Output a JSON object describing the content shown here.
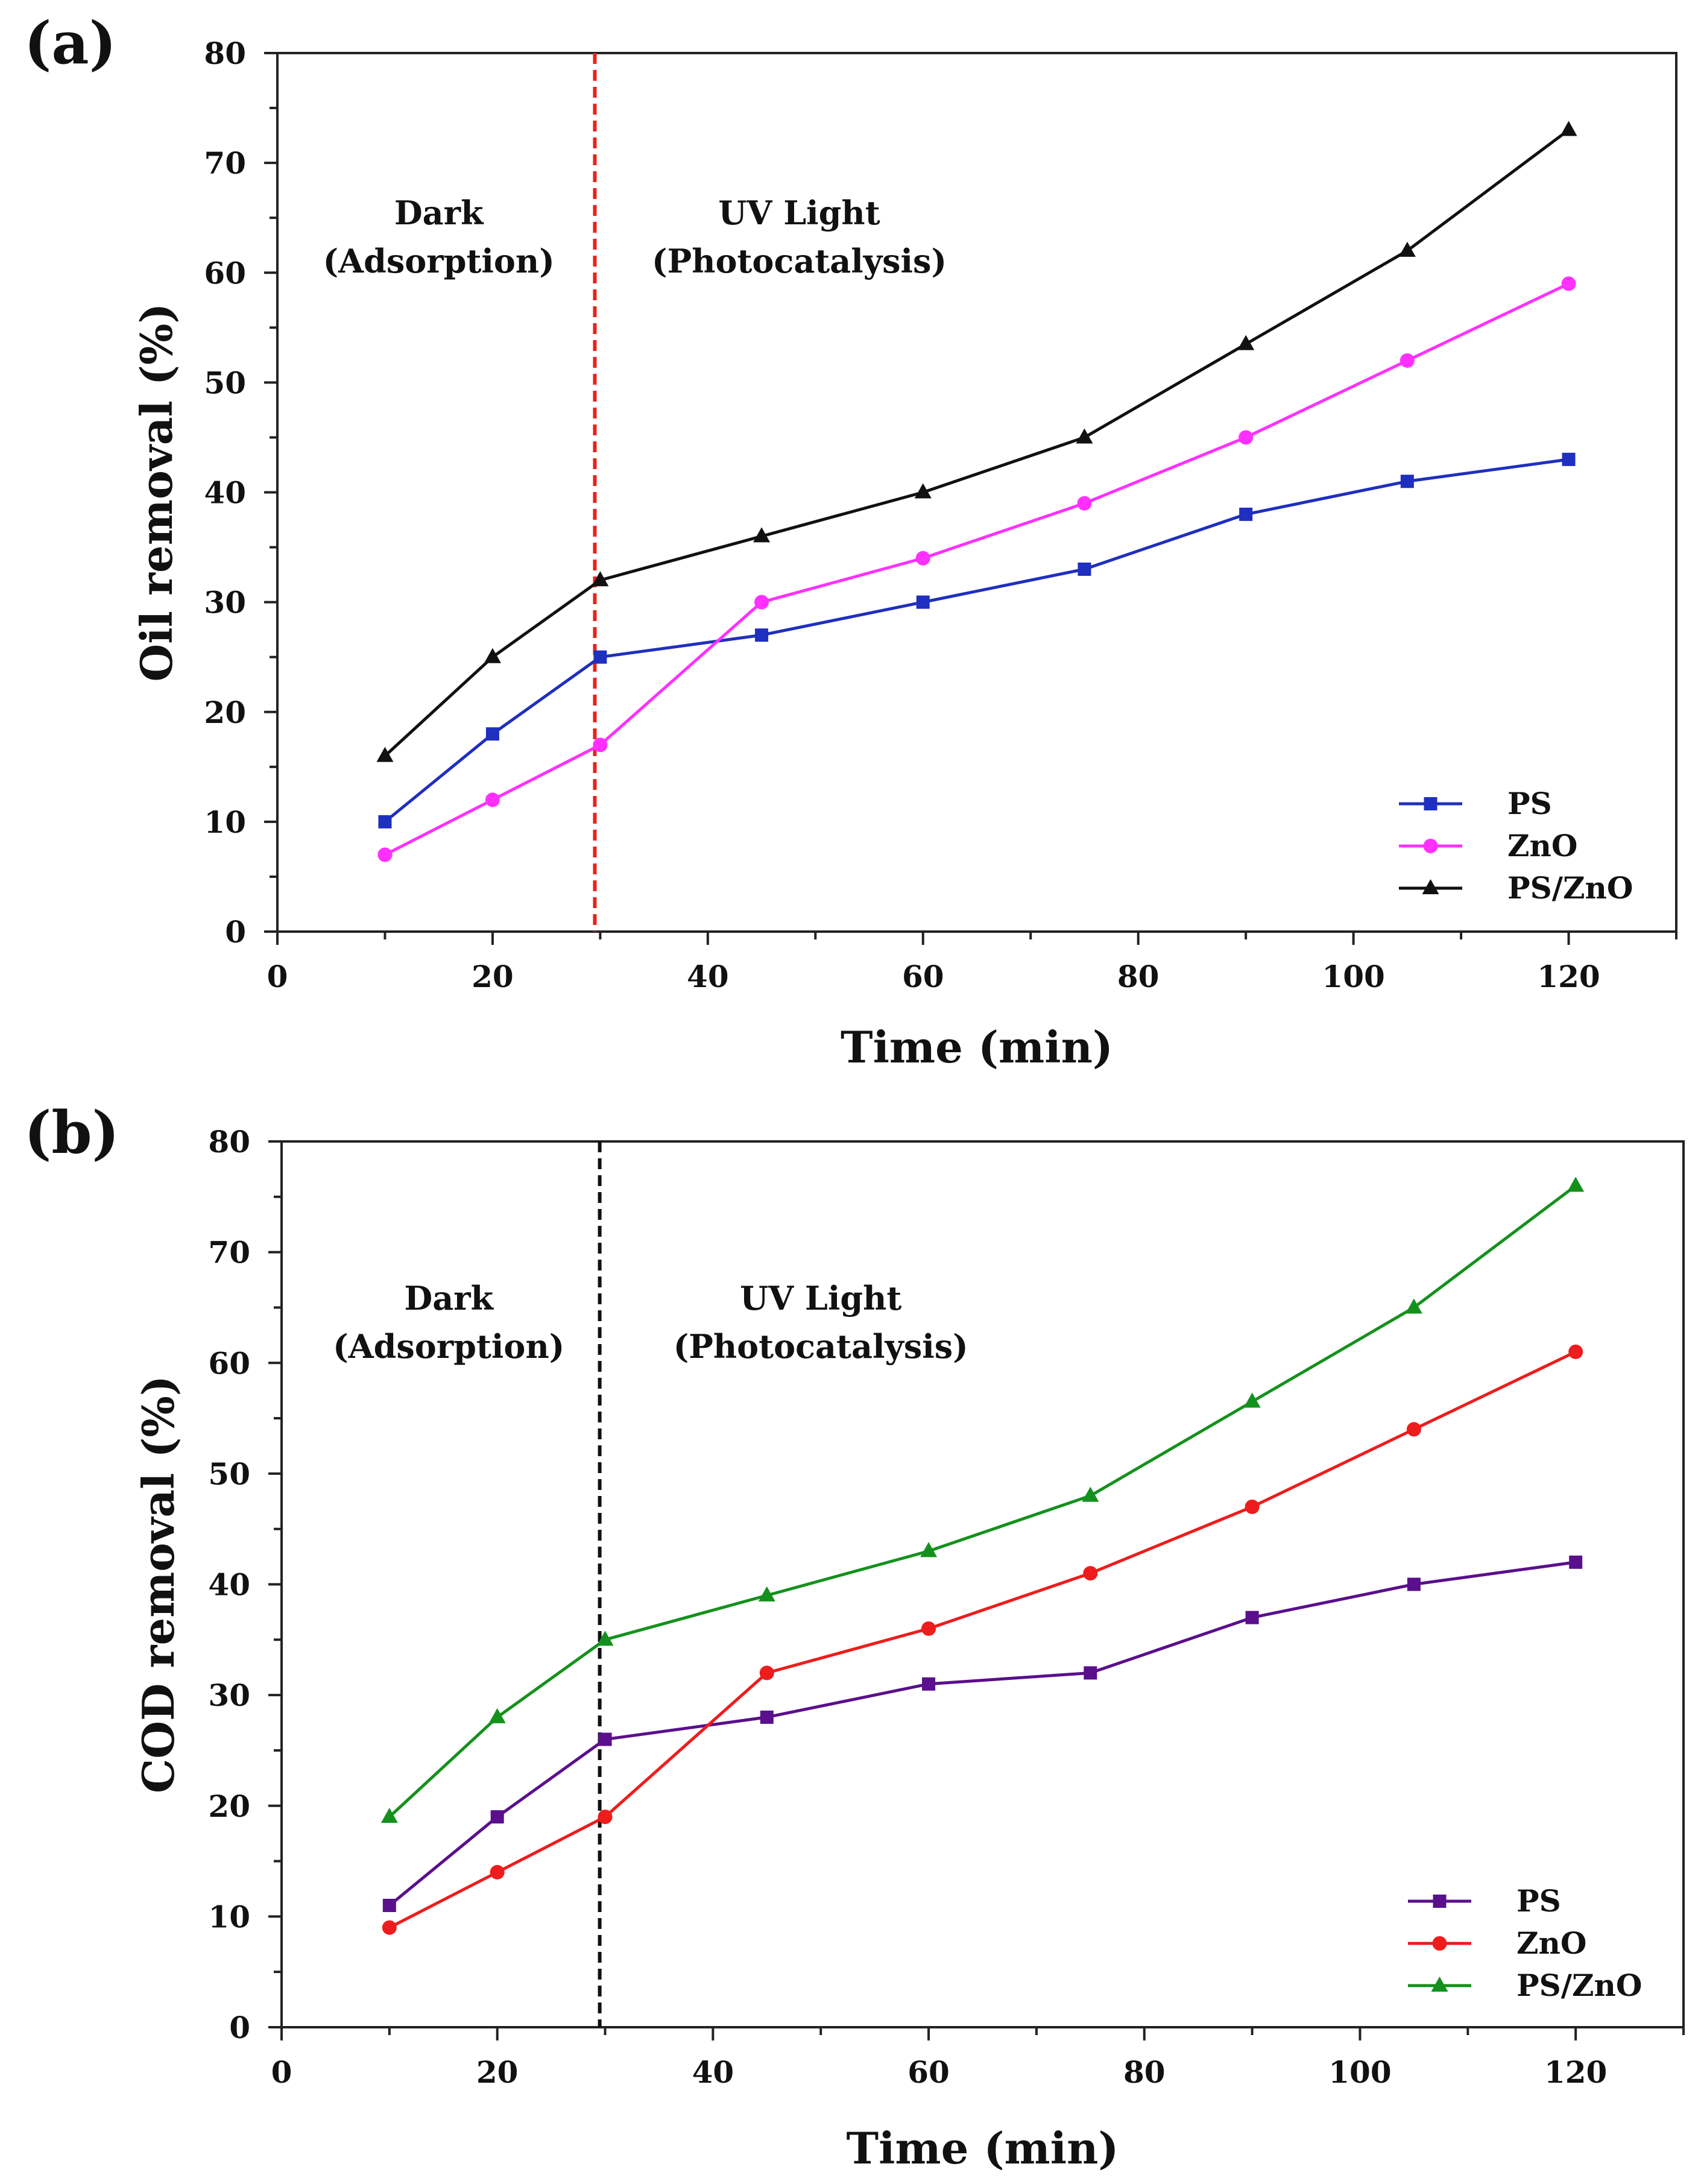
{
  "chart_data": [
    {
      "type": "line",
      "panel_label": "(a)",
      "xlabel": "Time (min)",
      "ylabel": "Oil removal (%)",
      "xlim": [
        0,
        130
      ],
      "ylim": [
        0,
        80
      ],
      "xticks": [
        0,
        20,
        40,
        60,
        80,
        100,
        120
      ],
      "yticks": [
        0,
        10,
        20,
        30,
        40,
        50,
        60,
        70,
        80
      ],
      "x": [
        10,
        20,
        30,
        45,
        60,
        75,
        90,
        105,
        120
      ],
      "series": [
        {
          "name": "PS",
          "color": "#1f2fbf",
          "marker": "square",
          "values": [
            10,
            18,
            25,
            27,
            30,
            33,
            38,
            41,
            43
          ]
        },
        {
          "name": "ZnO",
          "color": "#ff30ff",
          "marker": "circle",
          "values": [
            7,
            12,
            17,
            30,
            34,
            39,
            45,
            52,
            59
          ]
        },
        {
          "name": "PS/ZnO",
          "color": "#111111",
          "marker": "triangle",
          "values": [
            16,
            25,
            32,
            36,
            40,
            45,
            53.5,
            62,
            73
          ]
        }
      ],
      "divider": {
        "x": 29.5,
        "color": "#e8221c"
      },
      "regions": [
        {
          "line1": "Dark",
          "line2": "(Adsorption)",
          "x": 15
        },
        {
          "line1": "UV Light",
          "line2": "(Photocatalysis)",
          "x": 48.5
        }
      ],
      "legend": "bottom-right"
    },
    {
      "type": "line",
      "panel_label": "(b)",
      "xlabel": "Time (min)",
      "ylabel": "COD removal (%)",
      "xlim": [
        0,
        130
      ],
      "ylim": [
        0,
        80
      ],
      "xticks": [
        0,
        20,
        40,
        60,
        80,
        100,
        120
      ],
      "yticks": [
        0,
        10,
        20,
        30,
        40,
        50,
        60,
        70,
        80
      ],
      "x": [
        10,
        20,
        30,
        45,
        60,
        75,
        90,
        105,
        120
      ],
      "series": [
        {
          "name": "PS",
          "color": "#5a0f8c",
          "marker": "square",
          "values": [
            11,
            19,
            26,
            28,
            31,
            32,
            37,
            40,
            42
          ]
        },
        {
          "name": "ZnO",
          "color": "#ee1c1c",
          "marker": "circle",
          "values": [
            9,
            14,
            19,
            32,
            36,
            41,
            47,
            54,
            61
          ]
        },
        {
          "name": "PS/ZnO",
          "color": "#14911c",
          "marker": "triangle",
          "values": [
            19,
            28,
            35,
            39,
            43,
            48,
            56.5,
            65,
            76
          ]
        }
      ],
      "divider": {
        "x": 29.5,
        "color": "#111111"
      },
      "regions": [
        {
          "line1": "Dark",
          "line2": "(Adsorption)",
          "x": 15.5
        },
        {
          "line1": "UV Light",
          "line2": "(Photocatalysis)",
          "x": 50
        }
      ],
      "legend": "bottom-right"
    }
  ]
}
